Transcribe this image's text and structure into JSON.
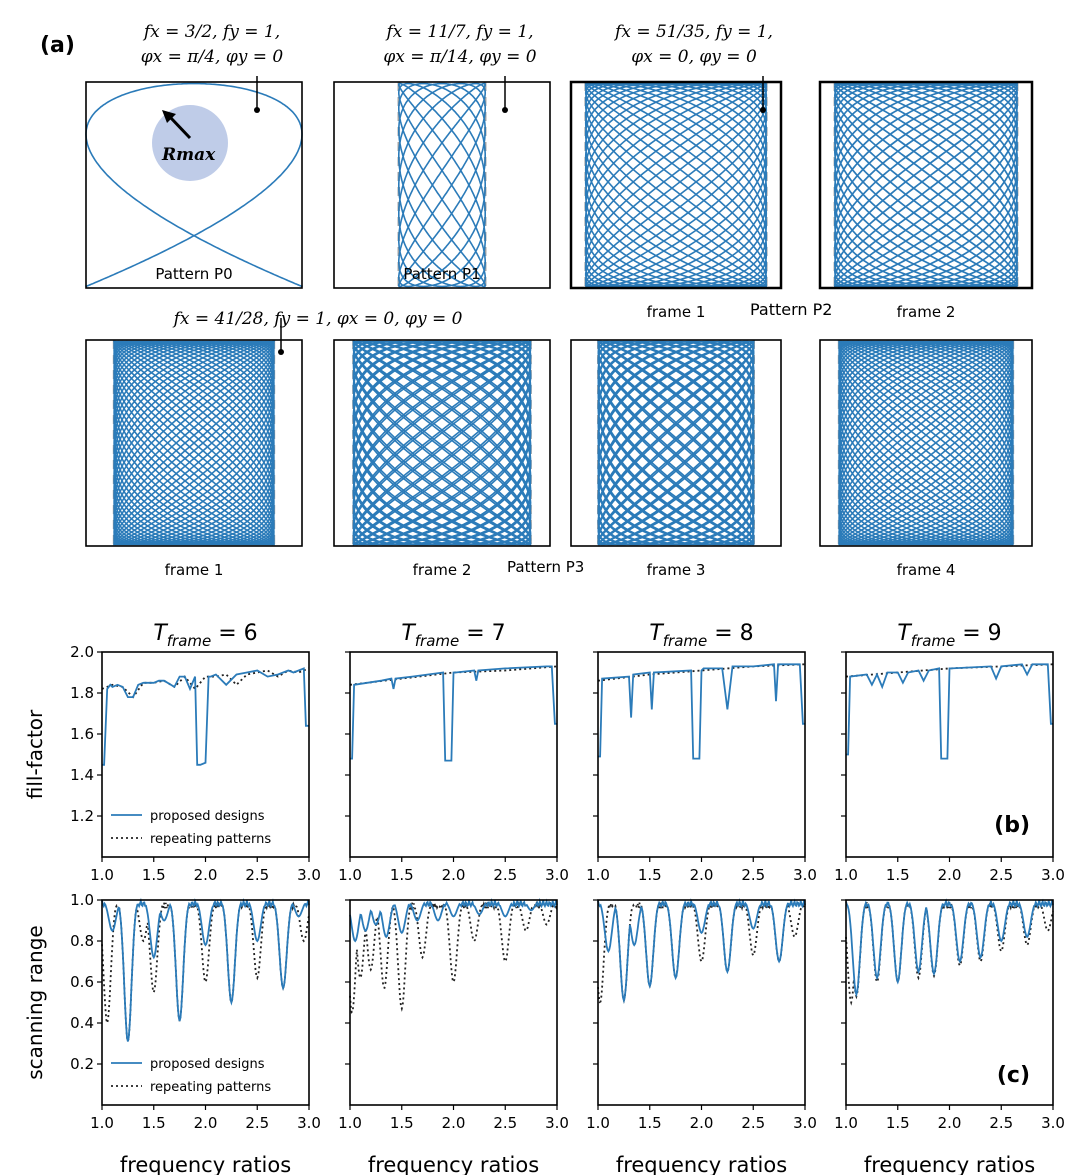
{
  "figure": {
    "panel_labels": {
      "a": "(a)",
      "b": "(b)",
      "c": "(c)"
    },
    "lissajous": [
      {
        "id": "P0",
        "fx_num": 3,
        "fx_den": 2,
        "fy": 1,
        "phx": 0.7854,
        "phy": 0,
        "param_lines": [
          "fx = 3/2, fy = 1,",
          "φx = π/4, φy = 0"
        ],
        "label": "Pattern P0",
        "frame_label": ""
      },
      {
        "id": "P1",
        "fx_num": 11,
        "fx_den": 7,
        "fy": 1,
        "phx": 0.2244,
        "phy": 0,
        "param_lines": [
          "fx = 11/7, fy = 1,",
          "φx = π/14, φy = 0"
        ],
        "label": "Pattern P1",
        "frame_label": ""
      },
      {
        "id": "P2f1",
        "fx_num": 51,
        "fx_den": 35,
        "fy": 1,
        "phx": 0,
        "phy": 0,
        "param_lines": [
          "fx = 51/35, fy = 1,",
          "φx = 0, φy = 0"
        ],
        "label": "",
        "frame_label": "frame 1"
      },
      {
        "id": "P2f2",
        "fx_num": 51,
        "fx_den": 35,
        "fy": 1,
        "phx": 0.45,
        "phy": 0,
        "param_lines": [],
        "label": "",
        "frame_label": "frame 2"
      },
      {
        "id": "P3f1",
        "fx_num": 41,
        "fx_den": 28,
        "fy": 1,
        "phx": 0,
        "phy": 0,
        "param_lines": [
          "fx = 41/28, fy = 1, φx = 0, φy = 0"
        ],
        "label": "",
        "frame_label": "frame 1"
      },
      {
        "id": "P3f2",
        "fx_num": 41,
        "fx_den": 28,
        "fy": 1,
        "phx": 0.3,
        "phy": 0,
        "param_lines": [],
        "label": "",
        "frame_label": "frame 2"
      },
      {
        "id": "P3f3",
        "fx_num": 41,
        "fx_den": 28,
        "fy": 1,
        "phx": 0.6,
        "phy": 0,
        "param_lines": [],
        "label": "",
        "frame_label": "frame 3"
      },
      {
        "id": "P3f4",
        "fx_num": 41,
        "fx_den": 28,
        "fy": 1,
        "phx": 0.9,
        "phy": 0,
        "param_lines": [],
        "label": "",
        "frame_label": "frame 4"
      }
    ],
    "rmax_label": "Rmax",
    "pattern2_label": "Pattern P2",
    "pattern3_label": "Pattern P3"
  },
  "chart_data": [
    {
      "type": "line",
      "panel": "b",
      "ylabel": "fill-factor",
      "xlabel": "",
      "xlim": [
        1.0,
        3.0
      ],
      "ylim": [
        1.0,
        2.0
      ],
      "xticks": [
        "1.0",
        "1.5",
        "2.0",
        "2.5",
        "3.0"
      ],
      "yticks": [
        "1.2",
        "1.4",
        "1.6",
        "1.8",
        "2.0"
      ],
      "legend": [
        "proposed designs",
        "repeating patterns"
      ],
      "subplots": [
        {
          "title": "T_frame = 6",
          "sub": "frame",
          "value": "6",
          "repeating": {
            "x": [
              1.0,
              1.1,
              1.2,
              1.3,
              1.4,
              1.5,
              1.6,
              1.7,
              1.8,
              1.9,
              2.0,
              2.1,
              2.2,
              2.3,
              2.4,
              2.5,
              2.6,
              2.7,
              2.8,
              2.9,
              3.0
            ],
            "y": [
              1.82,
              1.84,
              1.83,
              1.78,
              1.85,
              1.85,
              1.86,
              1.83,
              1.88,
              1.82,
              1.88,
              1.88,
              1.89,
              1.84,
              1.89,
              1.9,
              1.91,
              1.88,
              1.91,
              1.9,
              1.92
            ]
          },
          "proposed": {
            "x": [
              1.0,
              1.02,
              1.05,
              1.08,
              1.1,
              1.15,
              1.2,
              1.25,
              1.3,
              1.35,
              1.4,
              1.5,
              1.55,
              1.6,
              1.7,
              1.75,
              1.8,
              1.85,
              1.9,
              1.92,
              1.95,
              2.0,
              2.03,
              2.05,
              2.1,
              2.2,
              2.3,
              2.4,
              2.5,
              2.6,
              2.7,
              2.8,
              2.85,
              2.9,
              2.95,
              2.97,
              3.0
            ],
            "y": [
              1.45,
              1.45,
              1.82,
              1.84,
              1.83,
              1.84,
              1.83,
              1.78,
              1.78,
              1.84,
              1.85,
              1.85,
              1.86,
              1.86,
              1.83,
              1.88,
              1.88,
              1.82,
              1.88,
              1.45,
              1.45,
              1.46,
              1.88,
              1.88,
              1.89,
              1.84,
              1.89,
              1.9,
              1.91,
              1.88,
              1.89,
              1.91,
              1.9,
              1.91,
              1.92,
              1.64,
              1.64
            ]
          }
        },
        {
          "title": "T_frame = 7",
          "sub": "frame",
          "value": "7",
          "repeating": {
            "x": [
              1.0,
              1.5,
              2.0,
              2.5,
              3.0
            ],
            "y": [
              1.84,
              1.87,
              1.9,
              1.91,
              1.93
            ]
          },
          "proposed": {
            "x": [
              1.0,
              1.02,
              1.04,
              1.3,
              1.4,
              1.42,
              1.44,
              1.6,
              1.9,
              1.92,
              1.98,
              2.0,
              2.02,
              2.2,
              2.22,
              2.24,
              2.5,
              2.9,
              2.95,
              2.98,
              3.0
            ],
            "y": [
              1.48,
              1.48,
              1.84,
              1.86,
              1.87,
              1.82,
              1.87,
              1.88,
              1.9,
              1.47,
              1.47,
              1.9,
              1.9,
              1.91,
              1.86,
              1.91,
              1.92,
              1.93,
              1.93,
              1.65,
              1.65
            ]
          }
        },
        {
          "title": "T_frame = 8",
          "sub": "frame",
          "value": "8",
          "repeating": {
            "x": [
              1.0,
              1.5,
              2.0,
              2.5,
              3.0
            ],
            "y": [
              1.86,
              1.89,
              1.91,
              1.93,
              1.94
            ]
          },
          "proposed": {
            "x": [
              1.0,
              1.02,
              1.04,
              1.3,
              1.32,
              1.34,
              1.5,
              1.52,
              1.54,
              1.9,
              1.92,
              1.98,
              2.0,
              2.02,
              2.2,
              2.25,
              2.3,
              2.5,
              2.7,
              2.72,
              2.74,
              2.95,
              2.98,
              3.0
            ],
            "y": [
              1.49,
              1.49,
              1.87,
              1.88,
              1.68,
              1.89,
              1.9,
              1.72,
              1.9,
              1.91,
              1.48,
              1.48,
              1.91,
              1.92,
              1.92,
              1.72,
              1.93,
              1.93,
              1.94,
              1.76,
              1.94,
              1.94,
              1.65,
              1.65
            ]
          }
        },
        {
          "title": "T_frame = 9",
          "sub": "frame",
          "value": "9",
          "repeating": {
            "x": [
              1.0,
              1.5,
              2.0,
              2.5,
              3.0
            ],
            "y": [
              1.88,
              1.9,
              1.92,
              1.93,
              1.94
            ]
          },
          "proposed": {
            "x": [
              1.0,
              1.02,
              1.04,
              1.2,
              1.25,
              1.3,
              1.35,
              1.4,
              1.5,
              1.55,
              1.6,
              1.7,
              1.75,
              1.8,
              1.9,
              1.92,
              1.98,
              2.0,
              2.02,
              2.4,
              2.45,
              2.5,
              2.7,
              2.75,
              2.8,
              2.95,
              2.98,
              3.0
            ],
            "y": [
              1.5,
              1.5,
              1.88,
              1.89,
              1.84,
              1.89,
              1.83,
              1.9,
              1.9,
              1.85,
              1.9,
              1.91,
              1.86,
              1.91,
              1.92,
              1.48,
              1.48,
              1.92,
              1.92,
              1.93,
              1.87,
              1.93,
              1.94,
              1.89,
              1.94,
              1.94,
              1.65,
              1.65
            ]
          }
        }
      ]
    },
    {
      "type": "line",
      "panel": "c",
      "ylabel": "scanning range",
      "xlabel": "frequency ratios",
      "xlim": [
        1.0,
        3.0
      ],
      "ylim": [
        0.0,
        1.0
      ],
      "xticks": [
        "1.0",
        "1.5",
        "2.0",
        "2.5",
        "3.0"
      ],
      "yticks": [
        "0.2",
        "0.4",
        "0.6",
        "0.8",
        "1.0"
      ],
      "legend": [
        "proposed designs",
        "repeating patterns"
      ],
      "subplots": [
        {
          "title": "",
          "dips_proposed": [
            [
              1.25,
              0.31
            ],
            [
              1.75,
              0.41
            ],
            [
              2.25,
              0.5
            ],
            [
              2.75,
              0.57
            ],
            [
              1.5,
              0.72
            ],
            [
              2.0,
              0.78
            ],
            [
              2.5,
              0.8
            ],
            [
              1.1,
              0.85
            ],
            [
              1.6,
              0.9
            ],
            [
              2.9,
              0.92
            ]
          ],
          "dips_repeating": [
            [
              1.25,
              0.31
            ],
            [
              1.75,
              0.41
            ],
            [
              2.25,
              0.5
            ],
            [
              2.75,
              0.57
            ],
            [
              1.5,
              0.55
            ],
            [
              2.0,
              0.6
            ],
            [
              2.5,
              0.62
            ],
            [
              1.05,
              0.4
            ],
            [
              1.4,
              0.8
            ],
            [
              2.95,
              0.8
            ]
          ]
        },
        {
          "title": "",
          "dips_proposed": [
            [
              1.05,
              0.8
            ],
            [
              1.15,
              0.85
            ],
            [
              1.25,
              0.88
            ],
            [
              1.35,
              0.82
            ],
            [
              1.5,
              0.84
            ],
            [
              1.65,
              0.9
            ],
            [
              1.85,
              0.9
            ],
            [
              2.0,
              0.92
            ],
            [
              2.25,
              0.93
            ],
            [
              2.5,
              0.92
            ],
            [
              2.75,
              0.95
            ]
          ],
          "dips_repeating": [
            [
              1.02,
              0.45
            ],
            [
              1.1,
              0.62
            ],
            [
              1.2,
              0.66
            ],
            [
              1.33,
              0.57
            ],
            [
              1.5,
              0.47
            ],
            [
              1.7,
              0.72
            ],
            [
              2.0,
              0.6
            ],
            [
              2.2,
              0.8
            ],
            [
              2.5,
              0.7
            ],
            [
              2.7,
              0.85
            ],
            [
              2.9,
              0.88
            ]
          ]
        },
        {
          "title": "",
          "dips_proposed": [
            [
              1.25,
              0.51
            ],
            [
              1.5,
              0.58
            ],
            [
              1.75,
              0.62
            ],
            [
              2.25,
              0.65
            ],
            [
              2.75,
              0.7
            ],
            [
              1.1,
              0.75
            ],
            [
              1.35,
              0.78
            ],
            [
              2.0,
              0.84
            ],
            [
              2.5,
              0.86
            ]
          ],
          "dips_repeating": [
            [
              1.02,
              0.5
            ],
            [
              1.25,
              0.51
            ],
            [
              1.5,
              0.58
            ],
            [
              1.75,
              0.62
            ],
            [
              2.0,
              0.7
            ],
            [
              2.25,
              0.65
            ],
            [
              2.5,
              0.73
            ],
            [
              2.75,
              0.7
            ],
            [
              2.9,
              0.82
            ]
          ]
        },
        {
          "title": "",
          "dips_proposed": [
            [
              1.1,
              0.54
            ],
            [
              1.3,
              0.62
            ],
            [
              1.5,
              0.6
            ],
            [
              1.7,
              0.65
            ],
            [
              1.85,
              0.64
            ],
            [
              2.1,
              0.7
            ],
            [
              2.3,
              0.72
            ],
            [
              2.5,
              0.8
            ],
            [
              2.75,
              0.82
            ]
          ],
          "dips_repeating": [
            [
              1.05,
              0.5
            ],
            [
              1.1,
              0.53
            ],
            [
              1.3,
              0.6
            ],
            [
              1.5,
              0.6
            ],
            [
              1.7,
              0.62
            ],
            [
              1.85,
              0.63
            ],
            [
              2.1,
              0.68
            ],
            [
              2.3,
              0.7
            ],
            [
              2.5,
              0.75
            ],
            [
              2.75,
              0.78
            ],
            [
              2.95,
              0.85
            ]
          ]
        }
      ]
    }
  ],
  "colors": {
    "proposed": "#2b7bb9",
    "repeating": "#222222",
    "frame": "#000000",
    "guide": "#a0a0a0",
    "rmax": "#aabbe0"
  }
}
